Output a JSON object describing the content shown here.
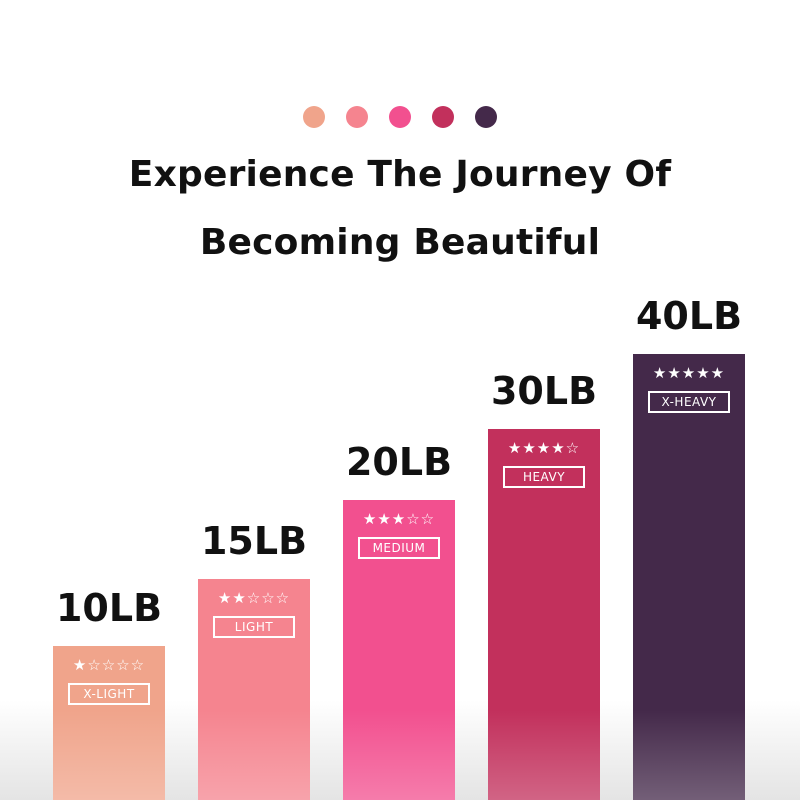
{
  "title_lines": [
    "Experience The Journey Of",
    "Becoming Beautiful"
  ],
  "colors": [
    "#F0A48B",
    "#F5848F",
    "#F2508F",
    "#C2305C",
    "#44294A"
  ],
  "chart_data": {
    "type": "bar",
    "categories": [
      "10LB",
      "15LB",
      "20LB",
      "30LB",
      "40LB"
    ],
    "values": [
      10,
      15,
      20,
      30,
      40
    ],
    "unit": "LB",
    "levels": [
      "X-LIGHT",
      "LIGHT",
      "MEDIUM",
      "HEAVY",
      "X-HEAVY"
    ],
    "ratings": [
      1,
      2,
      3,
      4,
      5
    ],
    "rating_max": 5
  }
}
